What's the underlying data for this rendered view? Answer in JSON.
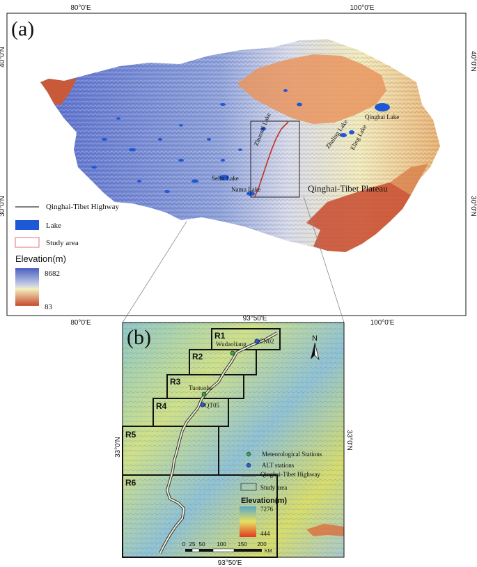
{
  "panel_a": {
    "label": "(a)",
    "coords": {
      "lon_80": "80°0'E",
      "lon_100": "100°0'E",
      "lat_40": "40°0'N",
      "lat_30": "30°0'N"
    },
    "lakes": {
      "qinghai": "Qinghai Lake",
      "zhuonai": "Zhuonai Lake",
      "zhaling": "Zhaling Lake",
      "eling": "Eling Lake",
      "selin": "Selin Lake",
      "namu": "Namu Lake"
    },
    "region_label": "Qinghai-Tibet Plateau",
    "legend": {
      "highway": "Qinghai-Tibet Highway",
      "lake": "Lake",
      "study_area": "Study area",
      "elevation_title": "Elevation(m)",
      "elev_max": "8682",
      "elev_min": "83"
    },
    "colors": {
      "high": "#4a5fc0",
      "mid": "#f3efc0",
      "low": "#c84a2e",
      "lake": "#1f58d6",
      "study": "#e07070"
    }
  },
  "panel_b": {
    "label": "(b)",
    "coords": {
      "lon_top": "93°50'E",
      "lon_bottom": "93°50'E",
      "lat_left": "33°0'N",
      "lat_right": "33°0'N"
    },
    "regions": [
      "R1",
      "R2",
      "R3",
      "R4",
      "R5",
      "R6"
    ],
    "stations": {
      "wudaoliang": "Wudaoliang",
      "cn02": "CN02",
      "tuotuohe": "Tuotuohe",
      "qt05": "QT05"
    },
    "north": "N",
    "legend": {
      "met": "Meteorological Stations",
      "alt": "ALT stations",
      "highway": "Qinghai-Tibet Highway",
      "study": "Study area",
      "elevation_title": "Elevation(m)",
      "elev_max": "7276",
      "elev_min": "444"
    },
    "scale": {
      "ticks": [
        "0",
        "25",
        "50",
        "100",
        "150",
        "200"
      ],
      "unit": "KM"
    },
    "colors": {
      "high": "#5aa6c8",
      "mid": "#e6e060",
      "low": "#e03a20",
      "met": "#3aa64a",
      "alt": "#2a5ad0"
    }
  }
}
